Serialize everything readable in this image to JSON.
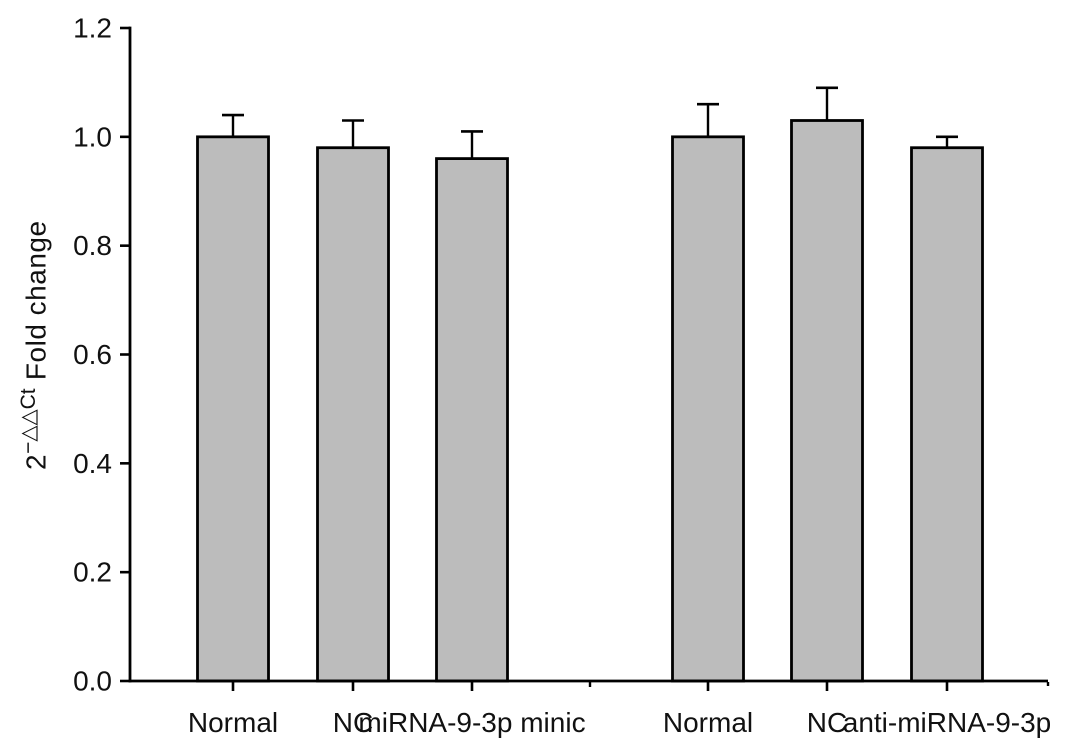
{
  "figure": {
    "background": "#ffffff"
  },
  "chart_data": {
    "type": "bar",
    "title": "",
    "xlabel": "",
    "ylabel_base": "2",
    "ylabel_sup": "−△△Ct",
    "ylabel_rest": " Fold change",
    "ylim": [
      0,
      1.2
    ],
    "ytick_labels": [
      "0.0",
      "0.2",
      "0.4",
      "0.6",
      "0.8",
      "1.0",
      "1.2"
    ],
    "grid": false,
    "legend": "none",
    "bar_fill": "#bcbcbc",
    "bar_stroke": "#000000",
    "axis_color": "#000000",
    "text_color": "#111111",
    "group_sizes": [
      3,
      3
    ],
    "categories": [
      "Normal",
      "NC",
      "miRNA-9-3p minic",
      "Normal",
      "NC",
      "anti-miRNA-9-3p"
    ],
    "values": [
      1.0,
      0.98,
      0.96,
      1.0,
      1.03,
      0.98
    ],
    "errors_upper": [
      0.04,
      0.05,
      0.05,
      0.06,
      0.06,
      0.02
    ]
  }
}
